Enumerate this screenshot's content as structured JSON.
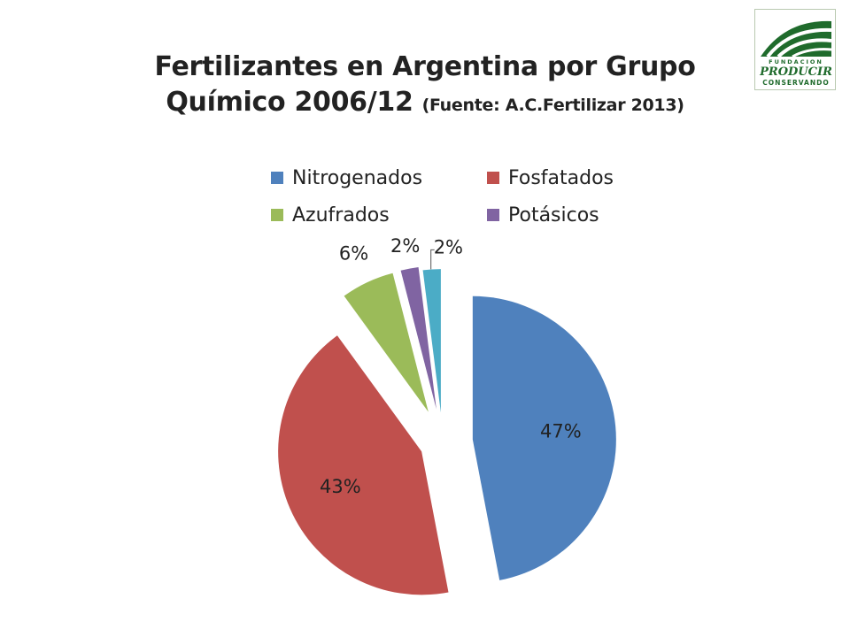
{
  "title": {
    "line1": "Fertilizantes en Argentina por Grupo",
    "line2": "Químico 2006/12",
    "source": "(Fuente: A.C.Fertilizar 2013)"
  },
  "logo": {
    "text_top": "FUNDACION",
    "text_mid": "PRODUCIR",
    "text_bottom": "CONSERVANDO",
    "color": "#1f6b2c"
  },
  "chart_data": {
    "type": "pie",
    "title": "Fertilizantes en Argentina por Grupo Químico 2006/12",
    "legend_position": "top",
    "exploded": true,
    "slices": [
      {
        "name": "Nitrogenados",
        "value": 47,
        "label": "47%",
        "color": "#4f81bd",
        "in_legend": true
      },
      {
        "name": "Fosfatados",
        "value": 43,
        "label": "43%",
        "color": "#c0504d",
        "in_legend": true
      },
      {
        "name": "Azufrados",
        "value": 6,
        "label": "6%",
        "color": "#9bbb59",
        "in_legend": true
      },
      {
        "name": "Potásicos",
        "value": 2,
        "label": "2%",
        "color": "#8064a2",
        "in_legend": true
      },
      {
        "name": "",
        "value": 2,
        "label": "2%",
        "color": "#4bacc6",
        "in_legend": false
      }
    ]
  }
}
